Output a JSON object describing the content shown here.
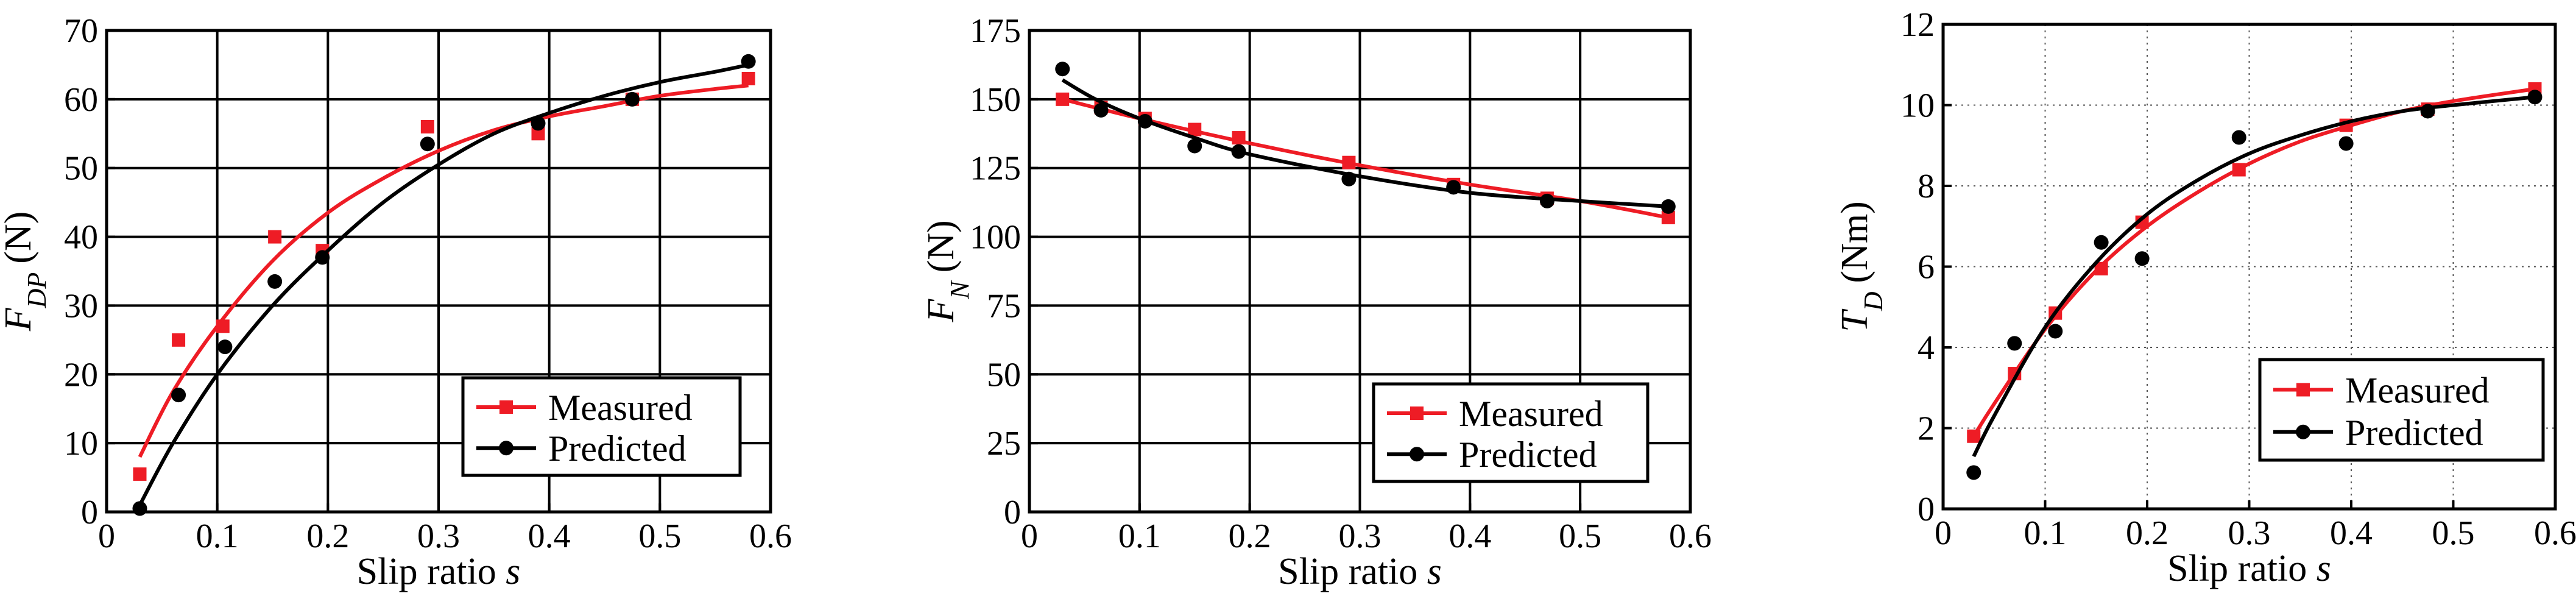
{
  "colors": {
    "measured": "#ee1c25",
    "predicted": "#000000"
  },
  "chart_data": [
    {
      "type": "line",
      "id": "fdp",
      "ylabel": {
        "main": "F",
        "sub": "DP",
        "unit": "(N)"
      },
      "xlabel": {
        "text": "Slip ratio ",
        "var": "s"
      },
      "xlim": [
        0,
        0.6
      ],
      "ylim": [
        0,
        70
      ],
      "xticks": [
        0,
        0.1,
        0.2,
        0.3,
        0.4,
        0.5,
        0.6
      ],
      "yticks": [
        0,
        10,
        20,
        30,
        40,
        50,
        60,
        70
      ],
      "xtick_labels": [
        "0",
        "0.1",
        "0.2",
        "0.3",
        "0.4",
        "0.5",
        "0.6"
      ],
      "ytick_labels": [
        "0",
        "10",
        "20",
        "30",
        "40",
        "50",
        "60",
        "70"
      ],
      "grid": "solid",
      "legend_position": "bottom-right",
      "series": [
        {
          "name": "Measured",
          "marker": "square",
          "points": [
            [
              0.03,
              5.5
            ],
            [
              0.065,
              25
            ],
            [
              0.105,
              27
            ],
            [
              0.152,
              40
            ],
            [
              0.195,
              38
            ],
            [
              0.29,
              56
            ],
            [
              0.39,
              55
            ],
            [
              0.475,
              60
            ],
            [
              0.58,
              63
            ]
          ],
          "curve": [
            [
              0.03,
              8
            ],
            [
              0.06,
              17.5
            ],
            [
              0.1,
              27
            ],
            [
              0.15,
              36.5
            ],
            [
              0.2,
              43.5
            ],
            [
              0.25,
              48.5
            ],
            [
              0.3,
              52.5
            ],
            [
              0.35,
              55.5
            ],
            [
              0.4,
              57.5
            ],
            [
              0.45,
              59
            ],
            [
              0.5,
              60.5
            ],
            [
              0.55,
              61.5
            ],
            [
              0.58,
              62
            ]
          ]
        },
        {
          "name": "Predicted",
          "marker": "circle",
          "points": [
            [
              0.03,
              0.5
            ],
            [
              0.065,
              17
            ],
            [
              0.107,
              24
            ],
            [
              0.152,
              33.5
            ],
            [
              0.195,
              37
            ],
            [
              0.29,
              53.5
            ],
            [
              0.39,
              56.5
            ],
            [
              0.475,
              60
            ],
            [
              0.58,
              65.5
            ]
          ],
          "curve": [
            [
              0.03,
              1
            ],
            [
              0.06,
              10
            ],
            [
              0.1,
              20
            ],
            [
              0.15,
              30
            ],
            [
              0.2,
              38
            ],
            [
              0.25,
              45
            ],
            [
              0.3,
              50.5
            ],
            [
              0.35,
              55
            ],
            [
              0.4,
              58
            ],
            [
              0.45,
              60.5
            ],
            [
              0.5,
              62.5
            ],
            [
              0.55,
              64
            ],
            [
              0.58,
              65
            ]
          ]
        }
      ]
    },
    {
      "type": "line",
      "id": "fn",
      "ylabel": {
        "main": "F",
        "sub": "N",
        "unit": "(N)"
      },
      "xlabel": {
        "text": "Slip ratio ",
        "var": "s"
      },
      "xlim": [
        0,
        0.6
      ],
      "ylim": [
        0,
        175
      ],
      "xticks": [
        0,
        0.1,
        0.2,
        0.3,
        0.4,
        0.5,
        0.6
      ],
      "yticks": [
        0,
        25,
        50,
        75,
        100,
        125,
        150,
        175
      ],
      "xtick_labels": [
        "0",
        "0.1",
        "0.2",
        "0.3",
        "0.4",
        "0.5",
        "0.6"
      ],
      "ytick_labels": [
        "0",
        "25",
        "50",
        "75",
        "100",
        "125",
        "150",
        "175"
      ],
      "grid": "solid",
      "legend_position": "bottom-right",
      "series": [
        {
          "name": "Measured",
          "marker": "square",
          "points": [
            [
              0.03,
              150
            ],
            [
              0.065,
              147
            ],
            [
              0.105,
              143
            ],
            [
              0.15,
              139
            ],
            [
              0.19,
              136
            ],
            [
              0.29,
              127
            ],
            [
              0.385,
              119
            ],
            [
              0.47,
              114
            ],
            [
              0.58,
              107
            ]
          ],
          "curve": [
            [
              0.03,
              150
            ],
            [
              0.1,
              143
            ],
            [
              0.2,
              134
            ],
            [
              0.3,
              126
            ],
            [
              0.4,
              119
            ],
            [
              0.5,
              113
            ],
            [
              0.58,
              107
            ]
          ]
        },
        {
          "name": "Predicted",
          "marker": "circle",
          "points": [
            [
              0.03,
              161
            ],
            [
              0.065,
              146
            ],
            [
              0.105,
              142
            ],
            [
              0.15,
              133
            ],
            [
              0.19,
              131
            ],
            [
              0.29,
              121
            ],
            [
              0.385,
              118
            ],
            [
              0.47,
              113
            ],
            [
              0.58,
              111
            ]
          ],
          "curve": [
            [
              0.03,
              157
            ],
            [
              0.06,
              150
            ],
            [
              0.1,
              143
            ],
            [
              0.15,
              136
            ],
            [
              0.2,
              130
            ],
            [
              0.3,
              122
            ],
            [
              0.4,
              116
            ],
            [
              0.5,
              113
            ],
            [
              0.58,
              111
            ]
          ]
        }
      ]
    },
    {
      "type": "line",
      "id": "td",
      "ylabel": {
        "main": "T",
        "sub": "D",
        "unit": "(Nm)"
      },
      "xlabel": {
        "text": "Slip ratio ",
        "var": "s"
      },
      "xlim": [
        0,
        0.6
      ],
      "ylim": [
        0,
        12
      ],
      "xticks": [
        0,
        0.1,
        0.2,
        0.3,
        0.4,
        0.5,
        0.6
      ],
      "yticks": [
        0,
        2,
        4,
        6,
        8,
        10,
        12
      ],
      "xtick_labels": [
        "0",
        "0.1",
        "0.2",
        "0.3",
        "0.4",
        "0.5",
        "0.6"
      ],
      "ytick_labels": [
        "0",
        "2",
        "4",
        "6",
        "8",
        "10",
        "12"
      ],
      "grid": "dotted",
      "legend_position": "bottom-right",
      "series": [
        {
          "name": "Measured",
          "marker": "square",
          "points": [
            [
              0.03,
              1.8
            ],
            [
              0.07,
              3.35
            ],
            [
              0.11,
              4.85
            ],
            [
              0.155,
              5.95
            ],
            [
              0.195,
              7.1
            ],
            [
              0.29,
              8.4
            ],
            [
              0.395,
              9.5
            ],
            [
              0.475,
              9.9
            ],
            [
              0.58,
              10.4
            ]
          ],
          "curve": [
            [
              0.03,
              1.8
            ],
            [
              0.05,
              2.6
            ],
            [
              0.1,
              4.45
            ],
            [
              0.15,
              5.9
            ],
            [
              0.2,
              7.0
            ],
            [
              0.25,
              7.85
            ],
            [
              0.3,
              8.55
            ],
            [
              0.35,
              9.1
            ],
            [
              0.4,
              9.5
            ],
            [
              0.45,
              9.85
            ],
            [
              0.5,
              10.1
            ],
            [
              0.58,
              10.4
            ]
          ]
        },
        {
          "name": "Predicted",
          "marker": "circle",
          "points": [
            [
              0.03,
              0.9
            ],
            [
              0.07,
              4.1
            ],
            [
              0.11,
              4.4
            ],
            [
              0.155,
              6.6
            ],
            [
              0.195,
              6.2
            ],
            [
              0.29,
              9.2
            ],
            [
              0.395,
              9.05
            ],
            [
              0.475,
              9.85
            ],
            [
              0.58,
              10.2
            ]
          ],
          "curve": [
            [
              0.03,
              1.3
            ],
            [
              0.05,
              2.3
            ],
            [
              0.1,
              4.5
            ],
            [
              0.15,
              6.1
            ],
            [
              0.2,
              7.3
            ],
            [
              0.25,
              8.15
            ],
            [
              0.3,
              8.8
            ],
            [
              0.35,
              9.25
            ],
            [
              0.4,
              9.6
            ],
            [
              0.45,
              9.85
            ],
            [
              0.5,
              10.0
            ],
            [
              0.58,
              10.2
            ]
          ]
        }
      ]
    }
  ]
}
